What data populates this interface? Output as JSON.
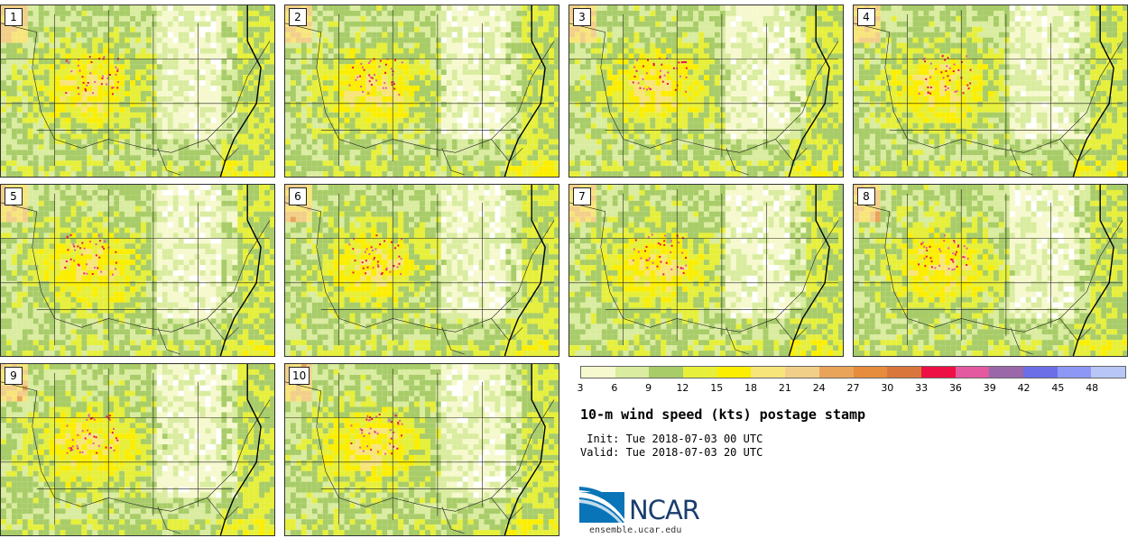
{
  "panels": [
    {
      "label": "1"
    },
    {
      "label": "2"
    },
    {
      "label": "3"
    },
    {
      "label": "4"
    },
    {
      "label": "5"
    },
    {
      "label": "6"
    },
    {
      "label": "7"
    },
    {
      "label": "8"
    },
    {
      "label": "9"
    },
    {
      "label": "10"
    }
  ],
  "colorbar": {
    "colors": [
      "#f6f9cd",
      "#d9ec9f",
      "#a8cc68",
      "#e6ef3a",
      "#fbee00",
      "#f8e57a",
      "#f2cf88",
      "#e9a45a",
      "#e58d3c",
      "#d9763c",
      "#ee1045",
      "#e35aa0",
      "#9a67a8",
      "#6c6ee8",
      "#8d97f6",
      "#b7c6f6"
    ],
    "ticks": [
      "3",
      "6",
      "9",
      "12",
      "15",
      "18",
      "21",
      "24",
      "27",
      "30",
      "33",
      "36",
      "39",
      "42",
      "45",
      "48"
    ]
  },
  "title": "10-m wind speed (kts) postage stamp",
  "init": " Init: Tue 2018-07-03 00 UTC",
  "valid": "Valid: Tue 2018-07-03 20 UTC",
  "logo": {
    "text": "NCAR",
    "url": "ensemble.ucar.edu"
  }
}
